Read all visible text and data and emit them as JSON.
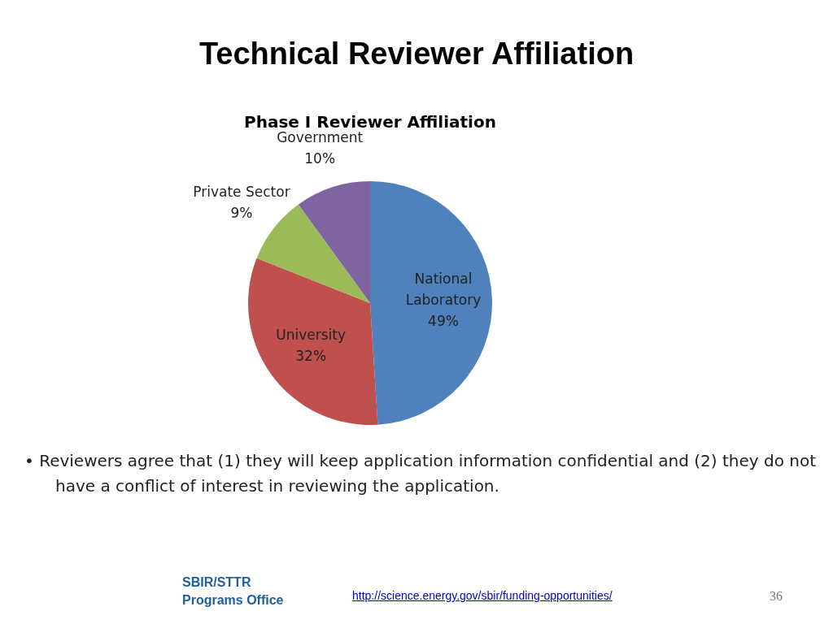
{
  "chart_data": {
    "type": "pie",
    "title": "Technical Reviewer Affiliation",
    "subtitle": "Phase I Reviewer Affiliation",
    "categories": [
      "National Laboratory",
      "University",
      "Private Sector",
      "Government"
    ],
    "values": [
      49,
      32,
      9,
      10
    ],
    "value_labels": [
      "49%",
      "32%",
      "9%",
      "10%"
    ],
    "colors": [
      "#4f81bd",
      "#c0504d",
      "#9bbb59",
      "#8064a2"
    ],
    "legend": false,
    "annotations": [
      "• Reviewers agree that (1) they will keep application information confidential and (2) they do not have a conflict of interest in reviewing the application.",
      "SBIR/STTR Programs Office",
      "http://science.energy.gov/sbir/funding-opportunities/",
      "36"
    ]
  }
}
